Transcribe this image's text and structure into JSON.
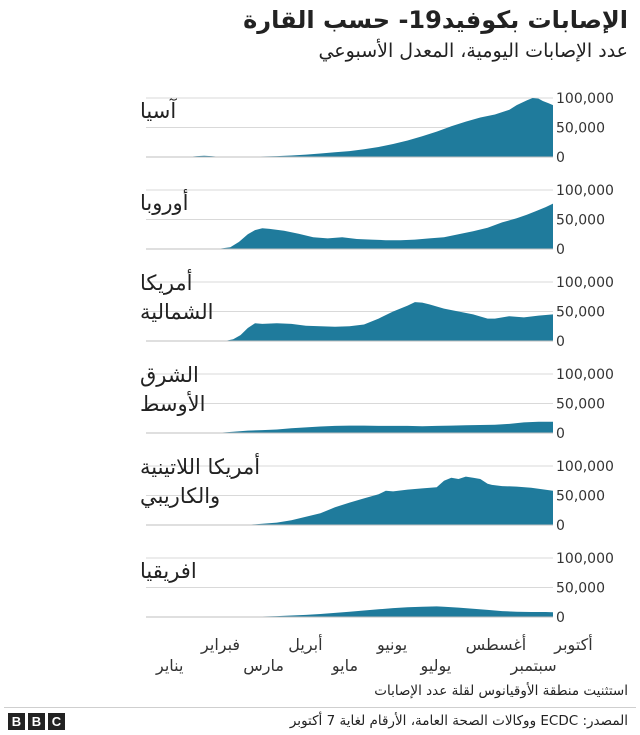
{
  "header": {
    "title": "الإصابات بكوفيد19- حسب القارة",
    "subtitle": "عدد الإصابات اليومية، المعدل الأسبوعي"
  },
  "footer": {
    "note": "استثنيت منطقة الأوقيانوس لقلة عدد الإصابات",
    "source": "المصدر: ECDC ووكالات الصحة العامة، الأرقام لغاية 7 أكتوبر",
    "logo_letters": [
      "B",
      "B",
      "C"
    ]
  },
  "chart_data": {
    "type": "area",
    "color": "#1f7b9c",
    "yticks": [
      0,
      50000,
      100000
    ],
    "ytick_labels": [
      "0",
      "50,000",
      "100,000"
    ],
    "ylim": [
      0,
      100000
    ],
    "x_range_days": [
      0,
      280
    ],
    "month_labels": [
      {
        "label": "يناير",
        "day": 0,
        "row": 2
      },
      {
        "label": "فبراير",
        "day": 31,
        "row": 1
      },
      {
        "label": "مارس",
        "day": 60,
        "row": 2
      },
      {
        "label": "أبريل",
        "day": 91,
        "row": 1
      },
      {
        "label": "مايو",
        "day": 121,
        "row": 2
      },
      {
        "label": "يونيو",
        "day": 152,
        "row": 1
      },
      {
        "label": "يوليو",
        "day": 182,
        "row": 2
      },
      {
        "label": "أغسطس",
        "day": 213,
        "row": 1
      },
      {
        "label": "سبتمبر",
        "day": 244,
        "row": 2
      },
      {
        "label": "أكتوبر",
        "day": 274,
        "row": 1
      }
    ],
    "panels": [
      {
        "name": "آسيا",
        "label_lines": [
          "آسيا"
        ],
        "points": [
          [
            0,
            0
          ],
          [
            20,
            0
          ],
          [
            30,
            500
          ],
          [
            35,
            1500
          ],
          [
            40,
            2200
          ],
          [
            45,
            1500
          ],
          [
            50,
            500
          ],
          [
            60,
            300
          ],
          [
            75,
            600
          ],
          [
            90,
            1500
          ],
          [
            100,
            2500
          ],
          [
            110,
            4000
          ],
          [
            120,
            6000
          ],
          [
            130,
            8000
          ],
          [
            140,
            10000
          ],
          [
            150,
            13000
          ],
          [
            160,
            17000
          ],
          [
            170,
            22000
          ],
          [
            180,
            28000
          ],
          [
            190,
            35000
          ],
          [
            200,
            43000
          ],
          [
            210,
            52000
          ],
          [
            220,
            60000
          ],
          [
            230,
            67000
          ],
          [
            240,
            72000
          ],
          [
            250,
            80000
          ],
          [
            255,
            88000
          ],
          [
            262,
            96000
          ],
          [
            266,
            100000
          ],
          [
            270,
            99000
          ],
          [
            273,
            95000
          ],
          [
            277,
            91000
          ],
          [
            280,
            88000
          ]
        ]
      },
      {
        "name": "أوروبا",
        "label_lines": [
          "أوروبا"
        ],
        "points": [
          [
            0,
            0
          ],
          [
            40,
            0
          ],
          [
            50,
            500
          ],
          [
            58,
            3000
          ],
          [
            64,
            12000
          ],
          [
            70,
            25000
          ],
          [
            75,
            32000
          ],
          [
            80,
            35000
          ],
          [
            85,
            34000
          ],
          [
            95,
            31000
          ],
          [
            105,
            26000
          ],
          [
            115,
            20000
          ],
          [
            125,
            18000
          ],
          [
            135,
            20000
          ],
          [
            145,
            17000
          ],
          [
            155,
            16000
          ],
          [
            165,
            15000
          ],
          [
            175,
            15000
          ],
          [
            185,
            16000
          ],
          [
            195,
            18000
          ],
          [
            205,
            20000
          ],
          [
            215,
            25000
          ],
          [
            225,
            30000
          ],
          [
            235,
            36000
          ],
          [
            245,
            45000
          ],
          [
            255,
            52000
          ],
          [
            262,
            58000
          ],
          [
            268,
            64000
          ],
          [
            275,
            71000
          ],
          [
            280,
            77000
          ]
        ]
      },
      {
        "name": "أمريكا الشمالية",
        "label_lines": [
          "أمريكا",
          "الشمالية"
        ],
        "points": [
          [
            0,
            0
          ],
          [
            50,
            0
          ],
          [
            55,
            500
          ],
          [
            60,
            3000
          ],
          [
            65,
            10000
          ],
          [
            70,
            22000
          ],
          [
            75,
            30000
          ],
          [
            80,
            29000
          ],
          [
            90,
            30000
          ],
          [
            100,
            29000
          ],
          [
            110,
            26000
          ],
          [
            120,
            25000
          ],
          [
            130,
            24000
          ],
          [
            140,
            25000
          ],
          [
            150,
            28000
          ],
          [
            160,
            38000
          ],
          [
            170,
            50000
          ],
          [
            180,
            60000
          ],
          [
            185,
            66000
          ],
          [
            190,
            65000
          ],
          [
            195,
            62000
          ],
          [
            205,
            55000
          ],
          [
            215,
            50000
          ],
          [
            225,
            45000
          ],
          [
            235,
            38000
          ],
          [
            240,
            38000
          ],
          [
            250,
            42000
          ],
          [
            260,
            40000
          ],
          [
            270,
            43000
          ],
          [
            280,
            45000
          ]
        ]
      },
      {
        "name": "الشرق الأوسط",
        "label_lines": [
          "الشرق",
          "الأوسط"
        ],
        "points": [
          [
            0,
            0
          ],
          [
            40,
            0
          ],
          [
            50,
            500
          ],
          [
            60,
            2000
          ],
          [
            70,
            4000
          ],
          [
            80,
            5000
          ],
          [
            90,
            6000
          ],
          [
            100,
            8000
          ],
          [
            110,
            9500
          ],
          [
            120,
            11000
          ],
          [
            130,
            12000
          ],
          [
            140,
            12500
          ],
          [
            150,
            12500
          ],
          [
            160,
            12000
          ],
          [
            170,
            12000
          ],
          [
            180,
            12000
          ],
          [
            190,
            11500
          ],
          [
            200,
            12000
          ],
          [
            210,
            12500
          ],
          [
            220,
            13000
          ],
          [
            230,
            13500
          ],
          [
            240,
            14000
          ],
          [
            250,
            15500
          ],
          [
            260,
            18000
          ],
          [
            270,
            19000
          ],
          [
            280,
            19000
          ]
        ]
      },
      {
        "name": "أمريكا اللاتينية والكاريبي",
        "label_lines": [
          "أمريكا اللاتينية",
          "والكاريبي"
        ],
        "points": [
          [
            0,
            0
          ],
          [
            60,
            0
          ],
          [
            70,
            500
          ],
          [
            80,
            2000
          ],
          [
            90,
            4000
          ],
          [
            100,
            8000
          ],
          [
            110,
            14000
          ],
          [
            120,
            20000
          ],
          [
            130,
            30000
          ],
          [
            140,
            38000
          ],
          [
            150,
            45000
          ],
          [
            160,
            52000
          ],
          [
            165,
            58000
          ],
          [
            170,
            57000
          ],
          [
            180,
            60000
          ],
          [
            190,
            62000
          ],
          [
            200,
            64000
          ],
          [
            205,
            75000
          ],
          [
            210,
            80000
          ],
          [
            215,
            78000
          ],
          [
            220,
            82000
          ],
          [
            225,
            80000
          ],
          [
            230,
            78000
          ],
          [
            235,
            70000
          ],
          [
            238,
            68000
          ],
          [
            245,
            66000
          ],
          [
            255,
            65000
          ],
          [
            265,
            63000
          ],
          [
            280,
            58000
          ]
        ]
      },
      {
        "name": "افريقيا",
        "label_lines": [
          "افريقيا"
        ],
        "points": [
          [
            0,
            0
          ],
          [
            60,
            0
          ],
          [
            70,
            200
          ],
          [
            80,
            800
          ],
          [
            90,
            1500
          ],
          [
            100,
            2500
          ],
          [
            110,
            3500
          ],
          [
            120,
            5000
          ],
          [
            130,
            7000
          ],
          [
            140,
            9000
          ],
          [
            150,
            11000
          ],
          [
            160,
            13000
          ],
          [
            170,
            15000
          ],
          [
            180,
            16500
          ],
          [
            190,
            17500
          ],
          [
            200,
            18000
          ],
          [
            205,
            17500
          ],
          [
            215,
            16000
          ],
          [
            225,
            14000
          ],
          [
            235,
            12000
          ],
          [
            245,
            10000
          ],
          [
            255,
            9000
          ],
          [
            265,
            8500
          ],
          [
            275,
            8500
          ],
          [
            280,
            8000
          ]
        ]
      }
    ]
  }
}
